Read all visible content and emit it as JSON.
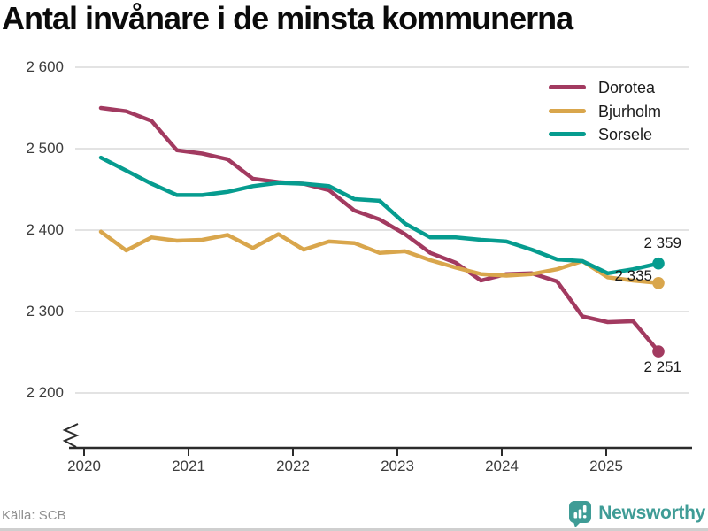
{
  "title": "Antal invånare i de minsta kommunerna",
  "source": "Källa: SCB",
  "brand": {
    "name": "Newsworthy",
    "color": "#3f9c96"
  },
  "chart_data": {
    "type": "line",
    "title": "Antal invånare i de minsta kommunerna",
    "x_unit": "quarter",
    "x": [
      "2020 Q1",
      "2020 Q2",
      "2020 Q3",
      "2020 Q4",
      "2021 Q1",
      "2021 Q2",
      "2021 Q3",
      "2021 Q4",
      "2022 Q1",
      "2022 Q2",
      "2022 Q3",
      "2022 Q4",
      "2023 Q1",
      "2023 Q2",
      "2023 Q3",
      "2023 Q4",
      "2024 Q1",
      "2024 Q2",
      "2024 Q3",
      "2024 Q4",
      "2025 Q1",
      "2025 Q2",
      "2025 Q3"
    ],
    "x_tick_labels": [
      "2020",
      "2021",
      "2022",
      "2023",
      "2024",
      "2025"
    ],
    "y_ticks": [
      2600,
      2500,
      2400,
      2300,
      2200
    ],
    "y_tick_labels": [
      "2 600",
      "2 500",
      "2 400",
      "2 300",
      "2 200"
    ],
    "ylim": [
      2200,
      2600
    ],
    "axis_break": true,
    "grid": "horizontal",
    "legend_position": "top-right",
    "series": [
      {
        "name": "Dorotea",
        "color": "#a23a60",
        "end_label": "2 251",
        "values": [
          2550,
          2546,
          2534,
          2498,
          2494,
          2487,
          2463,
          2459,
          2457,
          2449,
          2424,
          2413,
          2395,
          2372,
          2360,
          2338,
          2346,
          2347,
          2337,
          2294,
          2287,
          2288,
          2251
        ]
      },
      {
        "name": "Bjurholm",
        "color": "#d9a64c",
        "end_label": "2 335",
        "values": [
          2398,
          2375,
          2391,
          2387,
          2388,
          2394,
          2378,
          2395,
          2376,
          2386,
          2384,
          2372,
          2374,
          2363,
          2354,
          2346,
          2344,
          2346,
          2352,
          2362,
          2342,
          2338,
          2335
        ]
      },
      {
        "name": "Sorsele",
        "color": "#069c8f",
        "end_label": "2 359",
        "values": [
          2489,
          2473,
          2457,
          2443,
          2443,
          2447,
          2454,
          2458,
          2457,
          2454,
          2438,
          2436,
          2408,
          2391,
          2391,
          2388,
          2386,
          2376,
          2364,
          2362,
          2347,
          2352,
          2359
        ]
      }
    ]
  }
}
